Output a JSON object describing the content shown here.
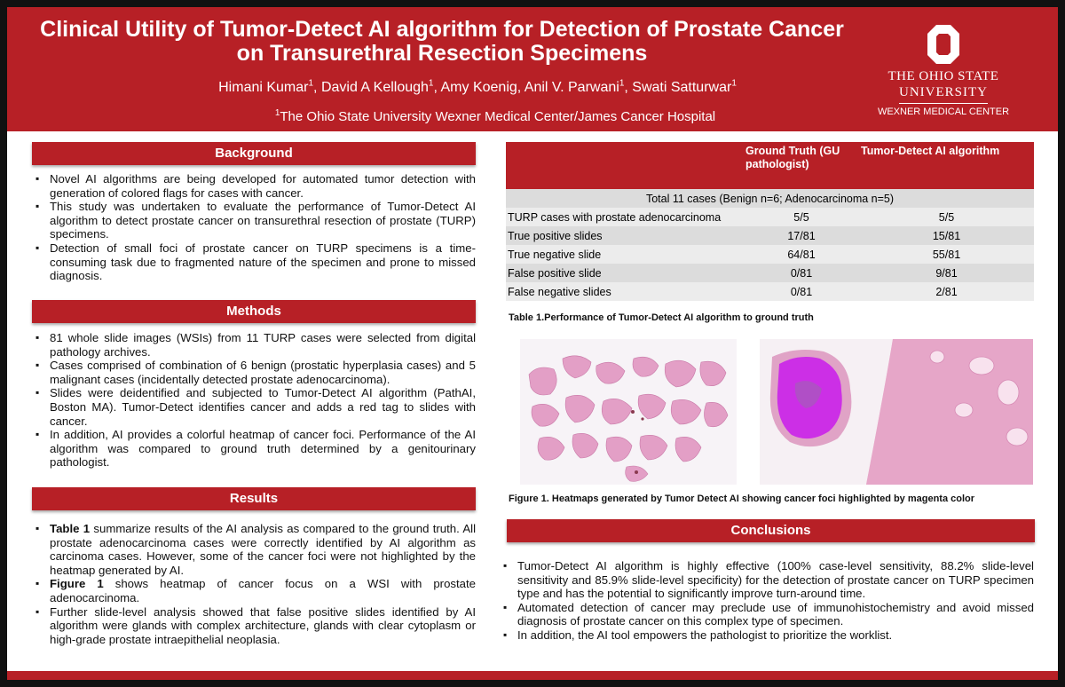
{
  "header": {
    "title_line1": "Clinical Utility of Tumor-Detect AI algorithm for Detection of Prostate Cancer",
    "title_line2": "on Transurethral Resection Specimens",
    "authors": [
      {
        "name": "Himani Kumar",
        "sup": "1"
      },
      {
        "name": "David A Kellough",
        "sup": "1"
      },
      {
        "name": "Amy Koenig",
        "sup": ""
      },
      {
        "name": "Anil V. Parwani",
        "sup": "1"
      },
      {
        "name": "Swati Satturwar",
        "sup": "1"
      }
    ],
    "affiliation_sup": "1",
    "affiliation": "The Ohio State University Wexner Medical Center/James Cancer Hospital",
    "logo": {
      "line1": "THE OHIO STATE",
      "line2": "UNIVERSITY",
      "line3": "WEXNER MEDICAL CENTER"
    }
  },
  "background": {
    "heading": "Background",
    "items": [
      "Novel AI algorithms are being developed for automated tumor detection with generation of colored flags for cases with cancer.",
      "This study was undertaken to evaluate the performance of Tumor-Detect AI algorithm to detect prostate cancer on transurethral resection of prostate (TURP) specimens.",
      "Detection of small foci of prostate cancer on TURP specimens is a time-consuming task due to fragmented nature of the specimen and prone to missed diagnosis."
    ]
  },
  "methods": {
    "heading": "Methods",
    "items": [
      "81 whole slide images (WSIs) from 11 TURP cases were selected from digital pathology archives.",
      "Cases comprised of combination of 6 benign (prostatic hyperplasia cases) and 5 malignant cases (incidentally detected prostate adenocarcinoma).",
      "Slides were deidentified and subjected to Tumor-Detect AI algorithm (PathAI, Boston MA). Tumor-Detect identifies cancer and adds a red tag to slides with cancer.",
      "In addition, AI provides a colorful heatmap of cancer foci. Performance of the AI algorithm was compared to ground truth determined by a genitourinary pathologist."
    ]
  },
  "results": {
    "heading": "Results",
    "items": [
      {
        "bold": "Table 1",
        "text": " summarize results of the AI analysis as compared to the ground truth. All prostate adenocarcinoma cases were correctly identified by AI algorithm as carcinoma cases. However, some of the cancer foci were not highlighted by the heatmap generated by AI."
      },
      {
        "bold": "Figure 1",
        "text": " shows heatmap of cancer focus on a WSI with prostate adenocarcinoma."
      },
      {
        "bold": "",
        "text": "Further slide-level analysis showed that false positive slides identified by AI algorithm were glands with complex architecture, glands with clear cytoplasm or high-grade prostate intraepithelial neoplasia."
      }
    ]
  },
  "table": {
    "headers": [
      "",
      "Ground Truth (GU pathologist)",
      "Tumor-Detect AI algorithm"
    ],
    "span_row": "Total 11 cases (Benign n=6; Adenocarcinoma n=5)",
    "rows": [
      [
        "TURP cases with prostate adenocarcinoma",
        "5/5",
        "5/5"
      ],
      [
        "True positive slides",
        "17/81",
        "15/81"
      ],
      [
        "True negative slide",
        "64/81",
        "55/81"
      ],
      [
        "False positive slide",
        "0/81",
        "9/81"
      ],
      [
        "False negative slides",
        "0/81",
        "2/81"
      ]
    ],
    "caption": "Table 1.Performance of Tumor-Detect AI algorithm to ground truth"
  },
  "figure": {
    "caption": "Figure 1. Heatmaps generated by Tumor Detect AI showing cancer foci highlighted by magenta color",
    "colors": {
      "tissue": "#e39fc6",
      "heatmap": "#cc2fe6",
      "stroma": "#f2c6dc"
    }
  },
  "conclusions": {
    "heading": "Conclusions",
    "items": [
      "Tumor-Detect AI algorithm is highly effective (100% case-level sensitivity, 88.2% slide-level sensitivity and 85.9% slide-level specificity) for the detection of prostate cancer on TURP specimen type and has the potential to significantly improve turn-around time.",
      "Automated detection of cancer may preclude use of immunohistochemistry and avoid missed diagnosis of prostate cancer on this complex type of specimen.",
      "In addition, the AI tool empowers the pathologist to prioritize the worklist."
    ]
  },
  "colors": {
    "brand_red": "#b72026",
    "table_alt": "#dcdcdc"
  }
}
